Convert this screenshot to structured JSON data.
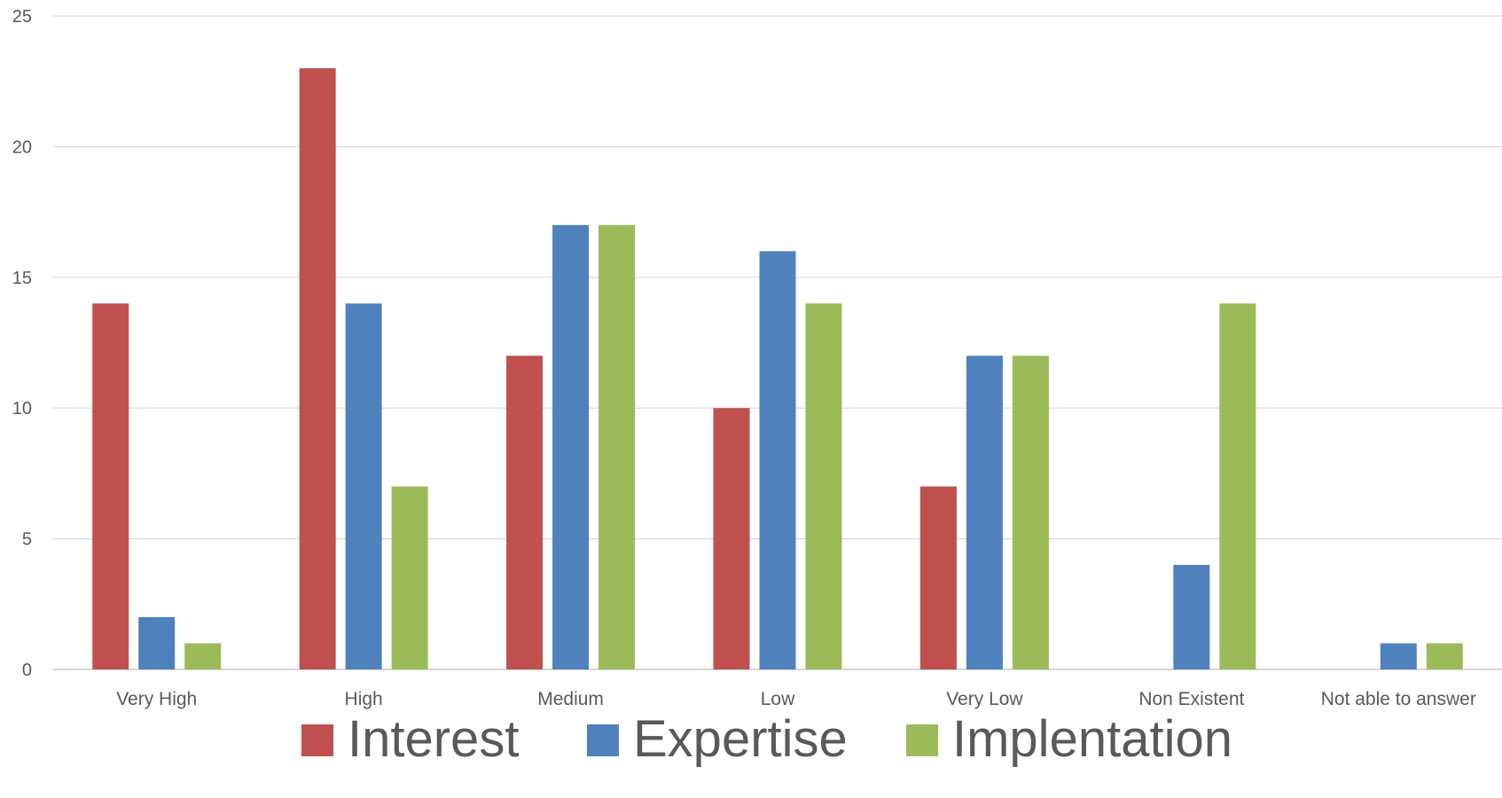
{
  "chart_data": {
    "type": "bar",
    "categories": [
      "Very High",
      "High",
      "Medium",
      "Low",
      "Very Low",
      "Non Existent",
      "Not able to answer"
    ],
    "series": [
      {
        "name": "Interest",
        "color": "#C0504D",
        "values": [
          14,
          23,
          12,
          10,
          7,
          0,
          0
        ]
      },
      {
        "name": "Expertise",
        "color": "#4F81BD",
        "values": [
          2,
          14,
          17,
          16,
          12,
          4,
          1
        ]
      },
      {
        "name": "Implentation",
        "color": "#9BBB59",
        "values": [
          1,
          7,
          17,
          14,
          12,
          14,
          1
        ]
      }
    ],
    "title": "",
    "xlabel": "",
    "ylabel": "",
    "ylim": [
      0,
      25
    ],
    "yticks": [
      0,
      5,
      10,
      15,
      20,
      25
    ],
    "grid": true,
    "legend_position": "bottom"
  }
}
